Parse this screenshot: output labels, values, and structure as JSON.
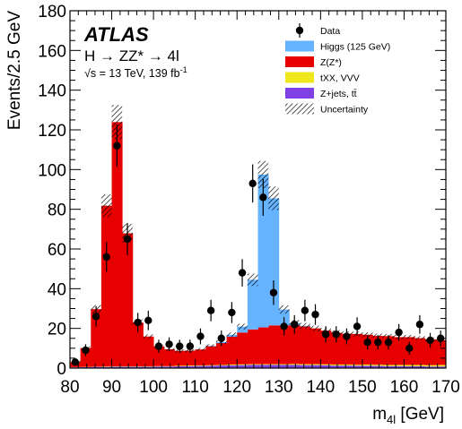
{
  "chart_data": {
    "type": "bar",
    "subtype": "stacked-histogram-with-data-points",
    "experiment_label": "ATLAS",
    "process_label": "H → ZZ* → 4l",
    "energy_label": "√s = 13 TeV, 139 fb",
    "energy_label_sup": "-1",
    "xlabel": "m",
    "xlabel_sub": "4l",
    "xlabel_unit": " [GeV]",
    "ylabel": "Events/2.5 GeV",
    "xlim": [
      80,
      170
    ],
    "ylim": [
      0,
      180
    ],
    "x_ticks": [
      80,
      90,
      100,
      110,
      120,
      130,
      140,
      150,
      160,
      170
    ],
    "y_ticks": [
      0,
      20,
      40,
      60,
      80,
      100,
      120,
      140,
      160,
      180
    ],
    "bin_width": 2.5,
    "bin_low_edges": [
      80,
      82.5,
      85,
      87.5,
      90,
      92.5,
      95,
      97.5,
      100,
      102.5,
      105,
      107.5,
      110,
      112.5,
      115,
      117.5,
      120,
      122.5,
      125,
      127.5,
      130,
      132.5,
      135,
      137.5,
      140,
      142.5,
      145,
      147.5,
      150,
      152.5,
      155,
      157.5,
      160,
      162.5,
      165,
      167.5
    ],
    "legend": {
      "position": "top-right",
      "entries": [
        {
          "label": "Data",
          "marker": "point"
        },
        {
          "label": "Higgs (125 GeV)",
          "color": "#66b3ff"
        },
        {
          "label": "Z(Z*)",
          "color": "#e60000"
        },
        {
          "label": "tXX, VVV",
          "color": "#f0e61e"
        },
        {
          "label": "Z+jets, tt̄",
          "color": "#8040e6"
        },
        {
          "label": "Uncertainty",
          "marker": "hatch"
        }
      ]
    },
    "series": [
      {
        "name": "Z+jets, tt̄",
        "color": "#8040e6",
        "values": [
          0.4,
          0.5,
          0.6,
          0.6,
          0.7,
          0.7,
          0.7,
          0.7,
          0.8,
          0.8,
          0.9,
          1.0,
          1.1,
          1.2,
          1.3,
          1.4,
          1.5,
          1.6,
          1.6,
          1.6,
          1.6,
          1.6,
          1.5,
          1.5,
          1.4,
          1.3,
          1.3,
          1.2,
          1.2,
          1.1,
          1.0,
          1.0,
          0.9,
          0.9,
          0.8,
          0.8
        ]
      },
      {
        "name": "tXX, VVV",
        "color": "#f0e61e",
        "values": [
          0.1,
          0.1,
          0.1,
          0.2,
          0.2,
          0.2,
          0.2,
          0.2,
          0.2,
          0.2,
          0.3,
          0.3,
          0.3,
          0.3,
          0.3,
          0.4,
          0.4,
          0.4,
          0.4,
          0.4,
          0.4,
          0.5,
          0.5,
          0.5,
          0.5,
          0.5,
          0.5,
          0.5,
          0.6,
          0.6,
          0.6,
          0.6,
          0.7,
          0.7,
          0.7,
          0.8
        ]
      },
      {
        "name": "Z(Z*)",
        "color": "#e60000",
        "values": [
          2.5,
          9.5,
          29,
          81,
          123,
          67,
          22,
          15,
          10,
          8.5,
          7.5,
          7.5,
          8,
          9.5,
          11,
          14,
          16,
          17.5,
          18.5,
          19.5,
          19.5,
          19.5,
          19,
          18,
          17,
          16,
          15.5,
          15.5,
          15,
          14.5,
          14.5,
          14,
          14,
          13.5,
          13,
          12.5
        ]
      },
      {
        "name": "Higgs (125 GeV)",
        "color": "#66b3ff",
        "values": [
          0,
          0,
          0,
          0,
          0,
          0,
          0,
          0,
          0,
          0,
          0,
          0,
          0,
          0.2,
          0.5,
          1,
          3,
          25,
          77,
          64,
          8,
          1,
          0.3,
          0,
          0,
          0,
          0,
          0,
          0,
          0,
          0,
          0,
          0,
          0,
          0,
          0
        ]
      }
    ],
    "uncertainty_fraction": 0.07,
    "data": {
      "name": "Data",
      "x": [
        81.25,
        83.75,
        86.25,
        88.75,
        91.25,
        93.75,
        96.25,
        98.75,
        101.25,
        103.75,
        106.25,
        108.75,
        111.25,
        113.75,
        116.25,
        118.75,
        121.25,
        123.75,
        126.25,
        128.75,
        131.25,
        133.75,
        136.25,
        138.75,
        141.25,
        143.75,
        146.25,
        148.75,
        151.25,
        153.75,
        156.25,
        158.75,
        161.25,
        163.75,
        166.25,
        168.75
      ],
      "y": [
        3,
        9,
        26,
        56,
        112,
        65,
        23,
        24,
        11,
        12,
        11,
        11,
        16,
        29,
        15,
        28,
        48,
        93,
        86,
        38,
        21,
        22,
        29,
        27,
        17,
        17,
        16,
        21,
        13,
        13,
        13,
        18,
        10,
        22,
        14,
        15
      ],
      "err": [
        1.7,
        3,
        5.1,
        7.5,
        10.6,
        8.1,
        4.8,
        4.9,
        3.3,
        3.5,
        3.3,
        3.3,
        4,
        5.4,
        3.9,
        5.3,
        6.9,
        9.6,
        9.3,
        6.2,
        4.6,
        4.7,
        5.4,
        5.2,
        4.1,
        4.1,
        4,
        4.6,
        3.6,
        3.6,
        3.6,
        4.2,
        3.2,
        4.7,
        3.7,
        3.9
      ]
    }
  }
}
